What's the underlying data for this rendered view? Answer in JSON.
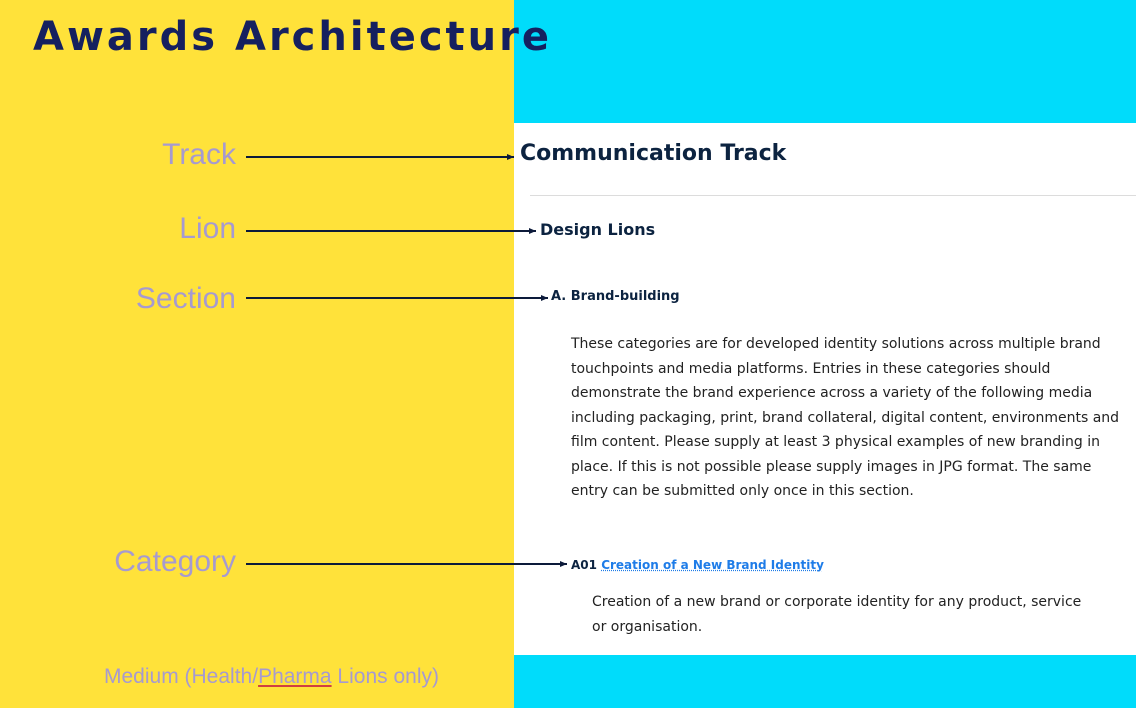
{
  "title": "Awards Architecture",
  "levels": {
    "track": "Track",
    "lion": "Lion",
    "section": "Section",
    "category": "Category"
  },
  "footer": {
    "prefix": "Medium (Health/",
    "underlined": "Pharma",
    "suffix": " Lions only)"
  },
  "example": {
    "track": "Communication Track",
    "lion": "Design Lions",
    "section": "A. Brand-building",
    "section_description": "These categories are for developed identity solutions across multiple brand touchpoints and media platforms. Entries in these categories should demonstrate the brand experience across a variety of the following media including packaging, print, brand collateral, digital content, environments and film content. Please supply at least 3 physical examples of new branding in place. If this is not possible please supply images in JPG format. The same entry can be submitted only once in this section.",
    "category_code": "A01",
    "category_name": "Creation of a New Brand Identity",
    "category_description": "Creation of a new brand or corporate identity for any product, service or organisation."
  },
  "colors": {
    "left_panel": "#ffe23a",
    "accent_cyan": "#00dcfb",
    "title": "#15205f",
    "label": "#a69ad0",
    "heading": "#0c2340",
    "link": "#1e7ce8"
  }
}
